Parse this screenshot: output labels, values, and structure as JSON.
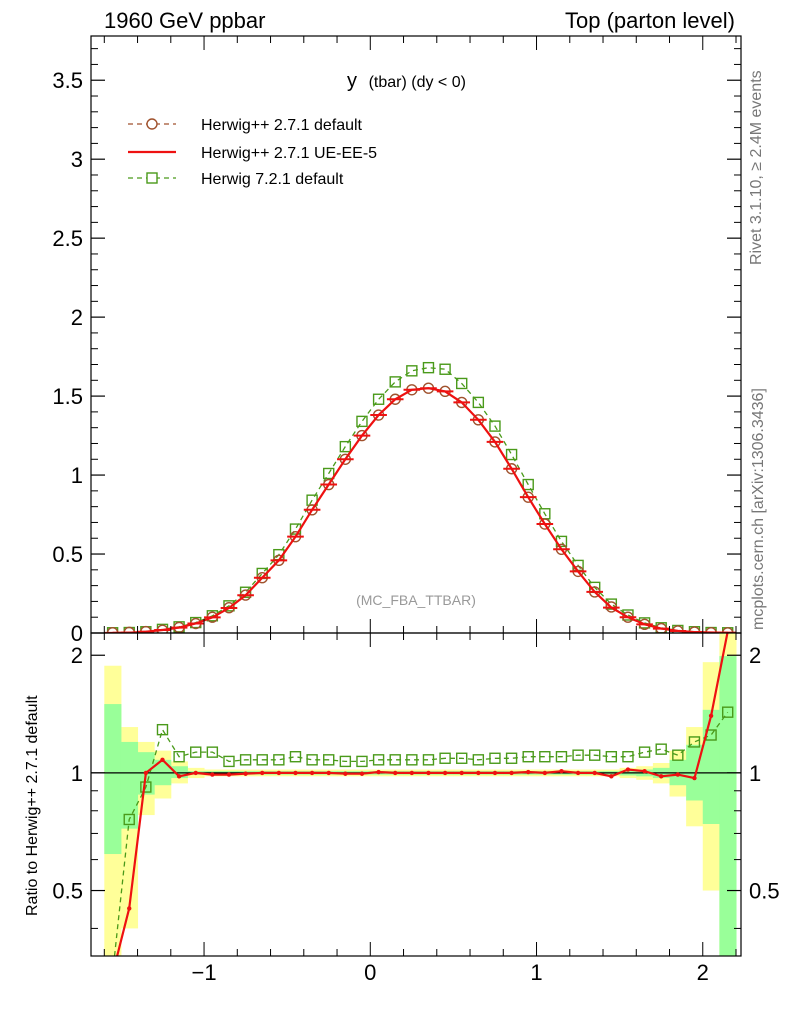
{
  "header": {
    "left": "1960 GeV ppbar",
    "right": "Top (parton level)"
  },
  "side_text": {
    "rivet": "Rivet 3.1.10, ≥ 2.4M events",
    "mcplots": "mcplots.cern.ch [arXiv:1306.3436]"
  },
  "plot_title": {
    "main": "y",
    "sub": "(tbar) (dy < 0)"
  },
  "watermark": "(MC_FBA_TTBAR)",
  "ratio_ylabel": "Ratio to Herwig++ 2.7.1 default",
  "colors": {
    "herwig_default": "#a0522d",
    "herwig_ueee5": "#ee1111",
    "herwig7": "#4a9a1a",
    "band_inner": "#99ff99",
    "band_outer": "#ffff99"
  },
  "chart_data": [
    {
      "type": "line",
      "panel": "main",
      "x": [
        -1.55,
        -1.45,
        -1.35,
        -1.25,
        -1.15,
        -1.05,
        -0.95,
        -0.85,
        -0.75,
        -0.65,
        -0.55,
        -0.45,
        -0.35,
        -0.25,
        -0.15,
        -0.05,
        0.05,
        0.15,
        0.25,
        0.35,
        0.45,
        0.55,
        0.65,
        0.75,
        0.85,
        0.95,
        1.05,
        1.15,
        1.25,
        1.35,
        1.45,
        1.55,
        1.65,
        1.75,
        1.85,
        1.95,
        2.05,
        2.15
      ],
      "series": [
        {
          "name": "Herwig++ 2.7.1 default",
          "style": "dashed-circle",
          "values": [
            0.002,
            0.004,
            0.009,
            0.018,
            0.035,
            0.06,
            0.1,
            0.16,
            0.24,
            0.35,
            0.46,
            0.61,
            0.78,
            0.94,
            1.1,
            1.25,
            1.38,
            1.48,
            1.54,
            1.55,
            1.53,
            1.46,
            1.35,
            1.21,
            1.04,
            0.86,
            0.69,
            0.53,
            0.39,
            0.26,
            0.165,
            0.1,
            0.055,
            0.028,
            0.013,
            0.006,
            0.002,
            0.001
          ]
        },
        {
          "name": "Herwig++ 2.7.1 UE-EE-5",
          "style": "solid",
          "values": [
            0.001,
            0.002,
            0.008,
            0.019,
            0.034,
            0.06,
            0.099,
            0.158,
            0.239,
            0.35,
            0.46,
            0.61,
            0.78,
            0.94,
            1.1,
            1.25,
            1.38,
            1.48,
            1.54,
            1.55,
            1.53,
            1.46,
            1.35,
            1.21,
            1.04,
            0.86,
            0.69,
            0.53,
            0.39,
            0.26,
            0.161,
            0.1,
            0.055,
            0.028,
            0.013,
            0.006,
            0.003,
            0.002
          ]
        },
        {
          "name": "Herwig 7.2.1 default",
          "style": "dashed-square",
          "values": [
            0.0016,
            0.003,
            0.008,
            0.023,
            0.039,
            0.066,
            0.109,
            0.172,
            0.258,
            0.377,
            0.496,
            0.658,
            0.841,
            1.01,
            1.18,
            1.34,
            1.48,
            1.59,
            1.66,
            1.68,
            1.67,
            1.58,
            1.46,
            1.31,
            1.13,
            0.94,
            0.755,
            0.58,
            0.428,
            0.289,
            0.183,
            0.114,
            0.064,
            0.033,
            0.016,
            0.008,
            0.0029,
            0.0015
          ]
        }
      ],
      "xlim": [
        -1.68,
        2.23
      ],
      "ylim": [
        0,
        3.78
      ],
      "yticks": [
        0,
        0.5,
        1,
        1.5,
        2,
        2.5,
        3,
        3.5
      ],
      "ytick_labels": [
        "0",
        "0.5",
        "1",
        "1.5",
        "2",
        "2.5",
        "3",
        "3.5"
      ],
      "legend": "top-left"
    },
    {
      "type": "line",
      "panel": "ratio",
      "x": [
        -1.55,
        -1.45,
        -1.35,
        -1.25,
        -1.15,
        -1.05,
        -0.95,
        -0.85,
        -0.75,
        -0.65,
        -0.55,
        -0.45,
        -0.35,
        -0.25,
        -0.15,
        -0.05,
        0.05,
        0.15,
        0.25,
        0.35,
        0.45,
        0.55,
        0.65,
        0.75,
        0.85,
        0.95,
        1.05,
        1.15,
        1.25,
        1.35,
        1.45,
        1.55,
        1.65,
        1.75,
        1.85,
        1.95,
        2.05,
        2.15
      ],
      "series": [
        {
          "name": "Herwig++ 2.7.1 UE-EE-5",
          "style": "solid",
          "values": [
            0.3,
            0.45,
            1.0,
            1.08,
            0.98,
            1.0,
            0.99,
            0.99,
            0.995,
            1.0,
            1.0,
            1.0,
            1.0,
            1.0,
            0.995,
            0.995,
            1.005,
            1.0,
            1.0,
            1.0,
            1.0,
            1.0,
            1.0,
            1.0,
            1.0,
            1.005,
            1.0,
            1.01,
            1.0,
            1.0,
            0.98,
            1.02,
            1.01,
            0.98,
            0.99,
            0.97,
            1.4,
            2.3
          ]
        },
        {
          "name": "Herwig 7.2.1 default",
          "style": "dashed-square",
          "values": [
            0.3,
            0.76,
            0.92,
            1.29,
            1.1,
            1.13,
            1.13,
            1.07,
            1.08,
            1.08,
            1.08,
            1.1,
            1.08,
            1.08,
            1.07,
            1.07,
            1.08,
            1.08,
            1.08,
            1.08,
            1.09,
            1.09,
            1.08,
            1.09,
            1.09,
            1.1,
            1.1,
            1.1,
            1.11,
            1.11,
            1.1,
            1.1,
            1.13,
            1.15,
            1.11,
            1.2,
            1.25,
            1.43
          ]
        }
      ],
      "band_inner": [
        [
          0.62,
          1.5
        ],
        [
          0.72,
          1.2
        ],
        [
          0.88,
          1.13
        ],
        [
          0.93,
          1.08
        ],
        [
          0.97,
          1.04
        ],
        [
          0.99,
          1.01
        ],
        [
          0.99,
          1.01
        ],
        [
          0.99,
          1.01
        ],
        [
          0.99,
          1.01
        ],
        [
          0.99,
          1.01
        ],
        [
          0.99,
          1.01
        ],
        [
          0.99,
          1.01
        ],
        [
          0.99,
          1.01
        ],
        [
          0.99,
          1.01
        ],
        [
          0.99,
          1.01
        ],
        [
          0.99,
          1.01
        ],
        [
          0.99,
          1.01
        ],
        [
          0.99,
          1.01
        ],
        [
          0.99,
          1.01
        ],
        [
          0.99,
          1.01
        ],
        [
          0.99,
          1.01
        ],
        [
          0.99,
          1.01
        ],
        [
          0.99,
          1.01
        ],
        [
          0.99,
          1.01
        ],
        [
          0.99,
          1.01
        ],
        [
          0.99,
          1.01
        ],
        [
          0.99,
          1.01
        ],
        [
          0.99,
          1.01
        ],
        [
          0.99,
          1.01
        ],
        [
          0.99,
          1.01
        ],
        [
          0.99,
          1.01
        ],
        [
          0.985,
          1.015
        ],
        [
          0.98,
          1.02
        ],
        [
          0.97,
          1.03
        ],
        [
          0.93,
          1.08
        ],
        [
          0.85,
          1.18
        ],
        [
          0.74,
          1.45
        ],
        [
          0.25,
          1.99
        ]
      ],
      "band_outer": [
        [
          0.25,
          1.88
        ],
        [
          0.4,
          1.31
        ],
        [
          0.78,
          1.2
        ],
        [
          0.86,
          1.14
        ],
        [
          0.94,
          1.07
        ],
        [
          0.97,
          1.03
        ],
        [
          0.98,
          1.02
        ],
        [
          0.98,
          1.02
        ],
        [
          0.98,
          1.02
        ],
        [
          0.98,
          1.02
        ],
        [
          0.98,
          1.02
        ],
        [
          0.98,
          1.02
        ],
        [
          0.98,
          1.02
        ],
        [
          0.98,
          1.02
        ],
        [
          0.98,
          1.02
        ],
        [
          0.98,
          1.02
        ],
        [
          0.98,
          1.02
        ],
        [
          0.98,
          1.02
        ],
        [
          0.98,
          1.02
        ],
        [
          0.98,
          1.02
        ],
        [
          0.98,
          1.02
        ],
        [
          0.98,
          1.02
        ],
        [
          0.98,
          1.02
        ],
        [
          0.98,
          1.02
        ],
        [
          0.98,
          1.02
        ],
        [
          0.98,
          1.02
        ],
        [
          0.98,
          1.02
        ],
        [
          0.98,
          1.02
        ],
        [
          0.98,
          1.02
        ],
        [
          0.98,
          1.02
        ],
        [
          0.98,
          1.02
        ],
        [
          0.97,
          1.03
        ],
        [
          0.96,
          1.04
        ],
        [
          0.94,
          1.06
        ],
        [
          0.87,
          1.14
        ],
        [
          0.73,
          1.31
        ],
        [
          0.5,
          1.92
        ],
        [
          0.25,
          2.4
        ]
      ],
      "xlim": [
        -1.68,
        2.23
      ],
      "ylim": [
        0.34,
        2.28
      ],
      "xticks": [
        -1,
        0,
        1,
        2
      ],
      "xtick_labels": [
        "−1",
        "0",
        "1",
        "2"
      ],
      "yticks": [
        0.5,
        1,
        2
      ],
      "ytick_labels": [
        "0.5",
        "1",
        "2"
      ]
    }
  ]
}
